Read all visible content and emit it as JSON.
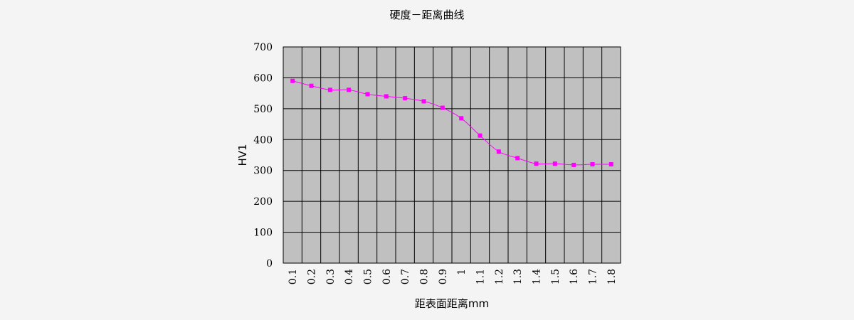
{
  "chart_data": {
    "type": "line",
    "title": "硬度－距离曲线",
    "xlabel": "距表面距离mm",
    "ylabel": "HV1",
    "categories": [
      "0.1",
      "0.2",
      "0.3",
      "0.4",
      "0.5",
      "0.6",
      "0.7",
      "0.8",
      "0.9",
      "1",
      "1.1",
      "1.2",
      "1.3",
      "1.4",
      "1.5",
      "1.6",
      "1.7",
      "1.8"
    ],
    "series": [
      {
        "values": [
          590,
          574,
          561,
          561,
          547,
          540,
          534,
          524,
          503,
          469,
          413,
          361,
          340,
          322,
          322,
          318,
          320,
          320
        ]
      }
    ],
    "ylim": [
      0,
      700
    ],
    "yticks": [
      0,
      100,
      200,
      300,
      400,
      500,
      600,
      700
    ],
    "grid": true,
    "legend": "none",
    "colors": {
      "plot_background": "#c0c0c0",
      "page_background": "#f4f4f4",
      "series": "#ff00ff",
      "grid": "#000000"
    }
  }
}
